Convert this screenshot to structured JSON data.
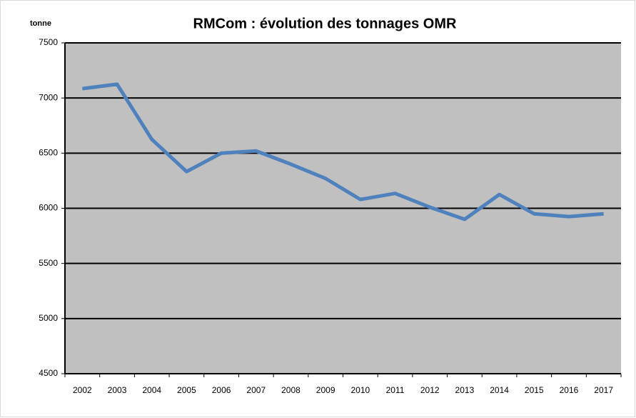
{
  "chart_data": {
    "type": "line",
    "title": "RMCom : évolution des tonnages OMR",
    "y_label": "tonne",
    "categories": [
      "2002",
      "2003",
      "2004",
      "2005",
      "2006",
      "2007",
      "2008",
      "2009",
      "2010",
      "2011",
      "2012",
      "2013",
      "2014",
      "2015",
      "2016",
      "2017"
    ],
    "series": [
      {
        "name": "OMR",
        "color": "#4f81bd",
        "values": [
          7085,
          7125,
          6625,
          6333,
          6500,
          6520,
          6400,
          6270,
          6080,
          6135,
          6010,
          5900,
          6125,
          5950,
          5925,
          5950
        ]
      }
    ],
    "ylim": [
      4500,
      7500
    ],
    "yticks": [
      4500,
      5000,
      5500,
      6000,
      6500,
      7000,
      7500
    ],
    "grid": true,
    "plot_background": "#c0c0c0"
  }
}
